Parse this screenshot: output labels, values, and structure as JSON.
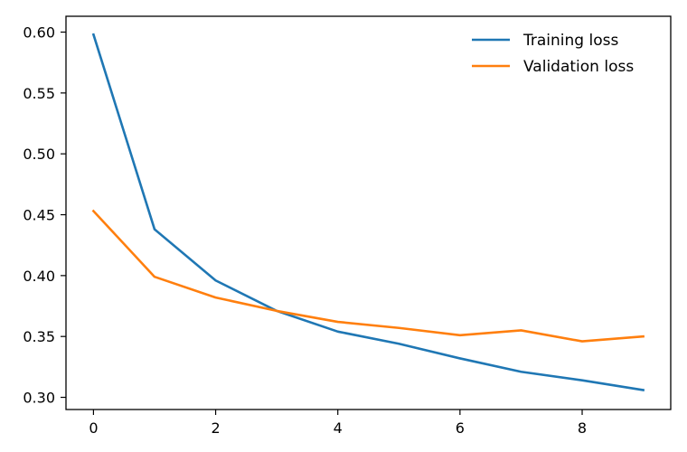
{
  "chart_data": {
    "type": "line",
    "title": "",
    "xlabel": "",
    "ylabel": "",
    "x": [
      0,
      1,
      2,
      3,
      4,
      5,
      6,
      7,
      8,
      9
    ],
    "xlim": [
      -0.45,
      9.45
    ],
    "ylim": [
      0.29,
      0.613
    ],
    "xticks": [
      0,
      2,
      4,
      6,
      8
    ],
    "xtick_labels": [
      "0",
      "2",
      "4",
      "6",
      "8"
    ],
    "yticks": [
      0.3,
      0.35,
      0.4,
      0.45,
      0.5,
      0.55,
      0.6
    ],
    "ytick_labels": [
      "0.30",
      "0.35",
      "0.40",
      "0.45",
      "0.50",
      "0.55",
      "0.60"
    ],
    "grid": false,
    "legend_position": "top-right",
    "series": [
      {
        "name": "Training loss",
        "color": "#1f77b4",
        "values": [
          0.598,
          0.438,
          0.396,
          0.371,
          0.354,
          0.344,
          0.332,
          0.321,
          0.314,
          0.306
        ]
      },
      {
        "name": "Validation loss",
        "color": "#ff7f0e",
        "values": [
          0.453,
          0.399,
          0.382,
          0.371,
          0.362,
          0.357,
          0.351,
          0.355,
          0.346,
          0.35
        ]
      }
    ]
  }
}
